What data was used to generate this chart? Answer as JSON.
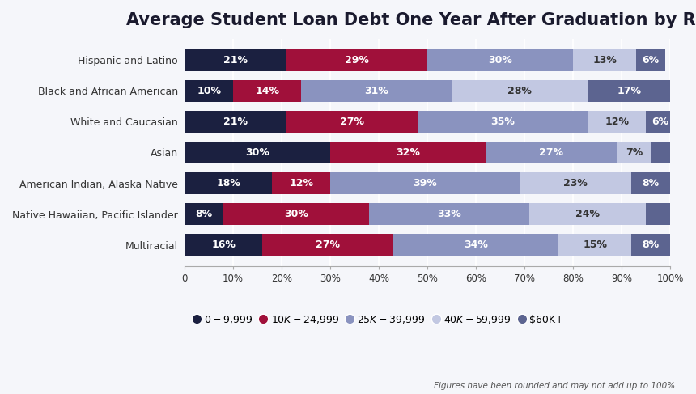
{
  "title": "Average Student Loan Debt One Year After Graduation by Race",
  "categories": [
    "Hispanic and Latino",
    "Black and African American",
    "White and Caucasian",
    "Asian",
    "American Indian, Alaska Native",
    "Native Hawaiian, Pacific Islander",
    "Multiracial"
  ],
  "series": [
    {
      "label": "$0-$9,999",
      "color": "#1b2040",
      "values": [
        21,
        10,
        21,
        30,
        18,
        8,
        16
      ]
    },
    {
      "label": "$10K-$24,999",
      "color": "#a0103a",
      "values": [
        29,
        14,
        27,
        32,
        12,
        30,
        27
      ]
    },
    {
      "label": "$25K-$39,999",
      "color": "#8a93bf",
      "values": [
        30,
        31,
        35,
        27,
        39,
        33,
        34
      ]
    },
    {
      "label": "$40K-$59,999",
      "color": "#c2c8e2",
      "values": [
        13,
        28,
        12,
        7,
        23,
        24,
        15
      ]
    },
    {
      "label": "$60K+",
      "color": "#5c6490",
      "values": [
        6,
        17,
        6,
        4,
        8,
        5,
        8
      ]
    }
  ],
  "footnote": "Figures have been rounded and may not add up to 100%",
  "background_color": "#f5f6fa",
  "plot_bg_color": "#f5f6fa",
  "title_fontsize": 15,
  "label_fontsize": 9,
  "tick_fontsize": 8.5,
  "legend_fontsize": 9,
  "bar_height": 0.72
}
